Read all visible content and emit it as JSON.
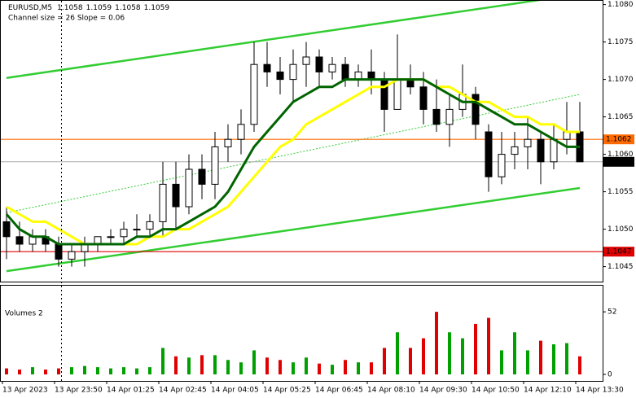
{
  "chart_data": [
    {
      "type": "candlestick",
      "title": "EURUSD,M5",
      "header_values": [
        1.1058,
        1.1059,
        1.1058,
        1.1059
      ],
      "indicator_label": "Channel size = 26 Slope = 0.06",
      "categories": [
        "13 Apr 2023",
        null,
        null,
        null,
        "13 Apr 23:50",
        null,
        null,
        null,
        "14 Apr 01:25",
        null,
        null,
        null,
        "14 Apr 02:45",
        null,
        null,
        null,
        "14 Apr 04:05",
        null,
        null,
        null,
        "14 Apr 05:25",
        null,
        null,
        null,
        "14 Apr 06:45",
        null,
        null,
        null,
        "14 Apr 08:10",
        null,
        null,
        null,
        "14 Apr 09:30",
        null,
        null,
        null,
        "14 Apr 10:50",
        null,
        null,
        null,
        "14 Apr 12:10",
        null,
        null,
        null,
        "14 Apr 13:30"
      ],
      "open": [
        1.1051,
        1.1049,
        1.1048,
        1.1049,
        1.1048,
        1.1046,
        1.1047,
        1.1048,
        1.1049,
        1.1049,
        1.105,
        1.105,
        1.1051,
        1.1056,
        1.1053,
        1.1058,
        1.1056,
        1.1061,
        1.1062,
        1.1064,
        1.1072,
        1.1071,
        1.107,
        1.1072,
        1.1073,
        1.1071,
        1.1072,
        1.107,
        1.1071,
        1.107,
        1.1066,
        1.107,
        1.1069,
        1.1066,
        1.1064,
        1.1066,
        1.1068,
        1.1063,
        1.1057,
        1.106,
        1.1061,
        1.1062,
        1.1059,
        1.1062,
        1.1063
      ],
      "high": [
        1.1053,
        1.1051,
        1.105,
        1.105,
        1.1049,
        1.1048,
        1.1049,
        1.1049,
        1.105,
        1.1051,
        1.1052,
        1.1052,
        1.1059,
        1.1059,
        1.106,
        1.106,
        1.1063,
        1.1064,
        1.1066,
        1.1075,
        1.1075,
        1.1073,
        1.1074,
        1.1075,
        1.1074,
        1.1073,
        1.1073,
        1.1072,
        1.1074,
        1.1071,
        1.1076,
        1.1072,
        1.1071,
        1.107,
        1.1068,
        1.1072,
        1.1069,
        1.1064,
        1.1063,
        1.1063,
        1.1065,
        1.1063,
        1.1064,
        1.1067,
        1.1067
      ],
      "low": [
        1.1046,
        1.1047,
        1.1047,
        1.1047,
        1.1045,
        1.1045,
        1.1045,
        1.1047,
        1.1048,
        1.1048,
        1.1049,
        1.1049,
        1.1049,
        1.105,
        1.1052,
        1.1054,
        1.1054,
        1.1059,
        1.106,
        1.1063,
        1.1069,
        1.1068,
        1.1067,
        1.1069,
        1.1069,
        1.107,
        1.1069,
        1.1069,
        1.1068,
        1.1063,
        1.1066,
        1.1068,
        1.1064,
        1.1063,
        1.1061,
        1.1065,
        1.1062,
        1.1055,
        1.1056,
        1.1058,
        1.1058,
        1.1056,
        1.1058,
        1.106,
        1.1059
      ],
      "close": [
        1.1049,
        1.1048,
        1.1049,
        1.1048,
        1.1046,
        1.1047,
        1.1048,
        1.1049,
        1.1049,
        1.105,
        1.105,
        1.1051,
        1.1056,
        1.1053,
        1.1058,
        1.1056,
        1.1061,
        1.1062,
        1.1064,
        1.1072,
        1.1071,
        1.107,
        1.1072,
        1.1073,
        1.1071,
        1.1072,
        1.107,
        1.1071,
        1.107,
        1.1066,
        1.107,
        1.1069,
        1.1066,
        1.1064,
        1.1066,
        1.1068,
        1.1064,
        1.1057,
        1.106,
        1.1061,
        1.1062,
        1.1059,
        1.1062,
        1.1063,
        1.1059
      ],
      "moving_averages": [
        {
          "color": "#ffff00",
          "values": [
            1.1053,
            1.1052,
            1.1051,
            1.1051,
            1.105,
            1.1049,
            1.1048,
            1.1048,
            1.1048,
            1.1048,
            1.1048,
            1.1049,
            1.1049,
            1.105,
            1.105,
            1.1051,
            1.1052,
            1.1053,
            1.1055,
            1.1057,
            1.1059,
            1.1061,
            1.1062,
            1.1064,
            1.1065,
            1.1066,
            1.1067,
            1.1068,
            1.1069,
            1.1069,
            1.107,
            1.107,
            1.107,
            1.1069,
            1.1069,
            1.1068,
            1.1067,
            1.1067,
            1.1066,
            1.1065,
            1.1065,
            1.1064,
            1.1064,
            1.1063,
            1.1063
          ]
        },
        {
          "color": "#006400",
          "values": [
            1.1052,
            1.105,
            1.1049,
            1.1049,
            1.1048,
            1.1048,
            1.1048,
            1.1048,
            1.1048,
            1.1048,
            1.1049,
            1.1049,
            1.105,
            1.105,
            1.1051,
            1.1052,
            1.1053,
            1.1055,
            1.1058,
            1.1061,
            1.1063,
            1.1065,
            1.1067,
            1.1068,
            1.1069,
            1.1069,
            1.107,
            1.107,
            1.107,
            1.107,
            1.107,
            1.107,
            1.107,
            1.1069,
            1.1068,
            1.1067,
            1.1067,
            1.1066,
            1.1065,
            1.1064,
            1.1064,
            1.1063,
            1.1062,
            1.1061,
            1.1061
          ]
        }
      ],
      "channel": [
        {
          "color": "#32cd32",
          "dashed": false,
          "values": [
            1.10702,
            1.10814
          ]
        },
        {
          "color": "#32cd32",
          "dashed": true,
          "values": [
            1.10522,
            1.1068
          ]
        },
        {
          "color": "#32cd32",
          "dashed": false,
          "values": [
            1.10444,
            1.10555
          ]
        }
      ],
      "hlines": [
        {
          "value": 1.1062,
          "color": "#ff6a00"
        },
        {
          "value": 1.1047,
          "color": "#e00000"
        }
      ],
      "price_label": 1.1059,
      "ylim": [
        1.1043,
        1.10805
      ],
      "yticks": [
        1.1045,
        {
          "value": 1.105,
          "label": "1.1050"
        },
        1.1055,
        {
          "value": 1.106,
          "label": "1.1060"
        },
        1.1065,
        {
          "value": 1.107,
          "label": "1.1070"
        },
        1.1075,
        {
          "value": 1.108,
          "label": "1.1080"
        }
      ]
    },
    {
      "type": "volume",
      "title": "Volumes 2",
      "up_color": "#00a000",
      "down_color": "#e00000",
      "values": [
        5,
        4,
        6,
        4,
        5,
        6,
        7,
        6,
        5,
        6,
        5,
        6,
        22,
        15,
        14,
        16,
        16,
        12,
        10,
        20,
        14,
        12,
        10,
        14,
        9,
        8,
        12,
        10,
        10,
        22,
        35,
        22,
        30,
        52,
        35,
        30,
        42,
        47,
        20,
        35,
        20,
        28,
        25,
        26,
        15
      ],
      "ylim": [
        0,
        57.5
      ],
      "yticks": [
        0,
        52
      ]
    }
  ]
}
